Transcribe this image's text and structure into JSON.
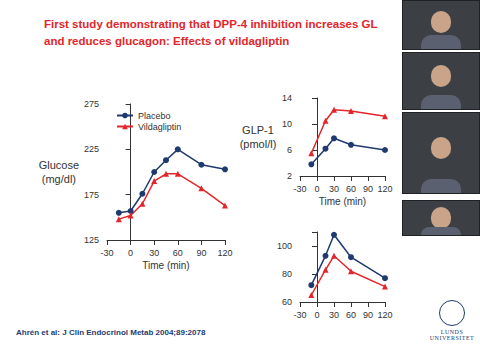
{
  "page": {
    "title_lines": [
      "First study demonstrating that DPP-4 inhibition increases GL",
      "and reduces glucagon: Effects of vildagliptin"
    ],
    "citation": "Ahrén et al: J Clin Endocrinol Metab 2004;89:2078",
    "logo": "LUNDS UNIVERSITET"
  },
  "chart_data": [
    {
      "type": "line",
      "ylabel": "Glucose\n(mg/dl)",
      "xlabel": "Time (min)",
      "x": [
        -15,
        0,
        15,
        30,
        45,
        60,
        90,
        120
      ],
      "series": [
        {
          "name": "Placebo",
          "color": "#1f3a6e",
          "marker": "circle",
          "values": [
            155,
            157,
            176,
            200,
            213,
            225,
            208,
            203
          ]
        },
        {
          "name": "Vildagliptin",
          "color": "#e3262b",
          "marker": "triangle",
          "values": [
            148,
            152,
            165,
            190,
            198,
            198,
            182,
            163
          ]
        }
      ],
      "xlim": [
        -30,
        120
      ],
      "xticks": [
        -30,
        0,
        30,
        60,
        90,
        120
      ],
      "ylim": [
        125,
        275
      ],
      "yticks": [
        125,
        175,
        225,
        275
      ],
      "grid": false,
      "legend": "upper left"
    },
    {
      "type": "line",
      "ylabel": "GLP-1\n(pmol/l)",
      "xlabel": "Time (min)",
      "x": [
        -10,
        15,
        30,
        60,
        120
      ],
      "series": [
        {
          "name": "Placebo",
          "color": "#1f3a6e",
          "marker": "circle",
          "values": [
            3.8,
            6.2,
            7.8,
            6.8,
            6.0
          ]
        },
        {
          "name": "Vildagliptin",
          "color": "#e3262b",
          "marker": "triangle",
          "values": [
            5.5,
            10.5,
            12.2,
            12.0,
            11.2
          ]
        }
      ],
      "xlim": [
        -30,
        120
      ],
      "xticks": [
        -30,
        0,
        30,
        60,
        90,
        120
      ],
      "ylim": [
        2,
        14
      ],
      "yticks": [
        2,
        6,
        10,
        14
      ],
      "grid": false
    },
    {
      "type": "line",
      "x": [
        -10,
        15,
        30,
        60,
        120
      ],
      "series": [
        {
          "name": "Placebo",
          "color": "#1f3a6e",
          "marker": "circle",
          "values": [
            72,
            93,
            108,
            92,
            77
          ]
        },
        {
          "name": "Vildagliptin",
          "color": "#e3262b",
          "marker": "triangle",
          "values": [
            65,
            83,
            93,
            82,
            71
          ]
        }
      ],
      "xlim": [
        -30,
        120
      ],
      "xticks": [
        -30,
        0,
        30,
        60,
        90,
        120
      ],
      "ylim": [
        60,
        110
      ],
      "yticks": [
        60,
        80,
        100
      ],
      "grid": false
    }
  ]
}
